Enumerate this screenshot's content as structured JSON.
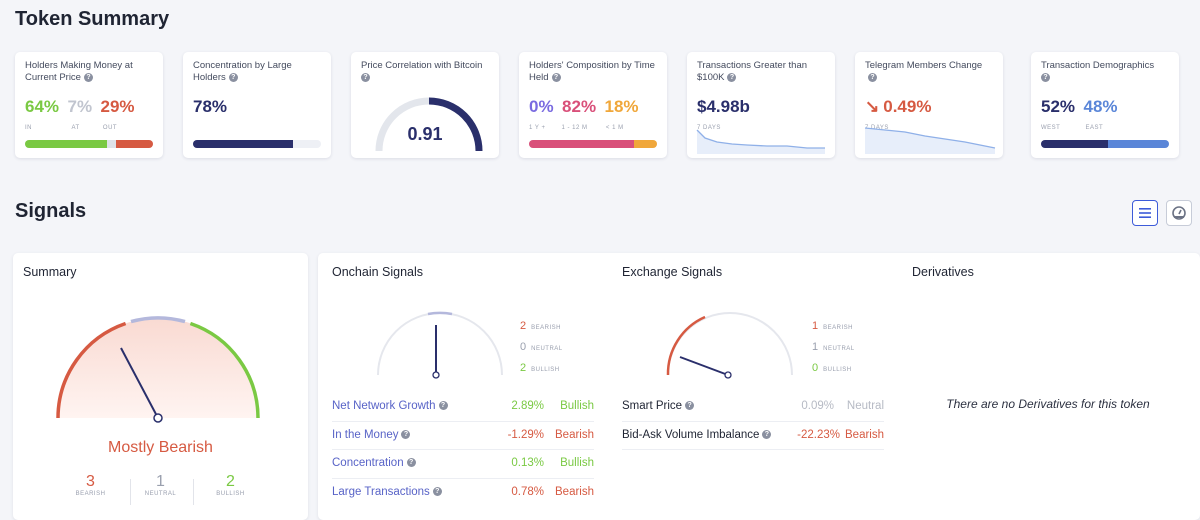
{
  "token_summary": {
    "title": "Token Summary",
    "cards": [
      {
        "title": "Holders Making Money at Current Price",
        "values": [
          {
            "v": "64%",
            "color": "#7ac943",
            "sub": "IN"
          },
          {
            "v": "7%",
            "color": "#c1c5cf",
            "sub": "AT"
          },
          {
            "v": "29%",
            "color": "#d65a42",
            "sub": "OUT"
          }
        ],
        "bar": [
          {
            "pct": 64,
            "color": "#7ac943"
          },
          {
            "pct": 7,
            "color": "#dfe2e8"
          },
          {
            "pct": 29,
            "color": "#d65a42"
          }
        ]
      },
      {
        "title": "Concentration by Large Holders",
        "values": [
          {
            "v": "78%",
            "color": "#2a2f6b"
          }
        ],
        "bar": [
          {
            "pct": 78,
            "color": "#2a2f6b"
          }
        ]
      },
      {
        "title": "Price Correlation with Bitcoin",
        "gauge_value": "0.91",
        "gauge_fraction": 0.91
      },
      {
        "title": "Holders' Composition by Time Held",
        "values": [
          {
            "v": "0%",
            "color": "#7a6be0",
            "sub": "1 Y +"
          },
          {
            "v": "82%",
            "color": "#d9507a",
            "sub": "1 - 12 M"
          },
          {
            "v": "18%",
            "color": "#f0a73a",
            "sub": "< 1 M"
          }
        ],
        "bar": [
          {
            "pct": 82,
            "color": "#d9507a"
          },
          {
            "pct": 18,
            "color": "#f0a73a"
          }
        ]
      },
      {
        "title": "Transactions Greater than $100K",
        "value": "$4.98b",
        "sub": "7 DAYS"
      },
      {
        "title": "Telegram Members Change",
        "value": "0.49%",
        "sub": "7 DAYS",
        "arrow": "↘"
      },
      {
        "title": "Transaction Demographics",
        "values": [
          {
            "v": "52%",
            "color": "#2a2f6b",
            "sub": "WEST"
          },
          {
            "v": "48%",
            "color": "#5a86d8",
            "sub": "EAST"
          }
        ],
        "bar": [
          {
            "pct": 52,
            "color": "#2a2f6b"
          },
          {
            "pct": 48,
            "color": "#5a86d8"
          }
        ]
      }
    ]
  },
  "signals": {
    "title": "Signals",
    "summary": {
      "title": "Summary",
      "verdict": "Mostly Bearish",
      "bearish": "3",
      "neutral": "1",
      "bullish": "2",
      "bearish_label": "BEARISH",
      "neutral_label": "NEUTRAL",
      "bullish_label": "BULLISH"
    },
    "onchain": {
      "title": "Onchain Signals",
      "bearish": "2",
      "neutral": "0",
      "bullish": "2",
      "bearish_label": "BEARISH",
      "neutral_label": "NEUTRAL",
      "bullish_label": "BULLISH",
      "rows": [
        {
          "name": "Net Network Growth",
          "value": "2.89%",
          "status": "Bullish",
          "color": "#7ac943"
        },
        {
          "name": "In the Money",
          "value": "-1.29%",
          "status": "Bearish",
          "color": "#d65a42"
        },
        {
          "name": "Concentration",
          "value": "0.13%",
          "status": "Bullish",
          "color": "#7ac943"
        },
        {
          "name": "Large Transactions",
          "value": "0.78%",
          "status": "Bearish",
          "color": "#d65a42"
        }
      ]
    },
    "exchange": {
      "title": "Exchange Signals",
      "bearish": "1",
      "neutral": "1",
      "bullish": "0",
      "bearish_label": "BEARISH",
      "neutral_label": "NEUTRAL",
      "bullish_label": "BULLISH",
      "rows": [
        {
          "name": "Smart Price",
          "value": "0.09%",
          "status": "Neutral",
          "color": "#b6bac4"
        },
        {
          "name": "Bid-Ask Volume Imbalance",
          "value": "-22.23%",
          "status": "Bearish",
          "color": "#d65a42"
        }
      ]
    },
    "derivatives": {
      "title": "Derivatives",
      "empty_text": "There are no Derivatives for this token"
    }
  },
  "icons": {
    "info": "info-icon",
    "list_view": "list-view-icon",
    "gauge_view": "gauge-view-icon",
    "down_arrow": "arrow-down-right-icon"
  }
}
